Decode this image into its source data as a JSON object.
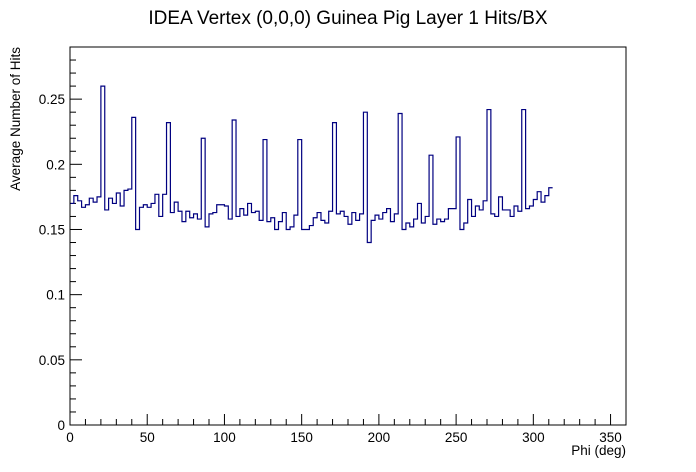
{
  "chart_data": {
    "type": "step",
    "title": "IDEA Vertex (0,0,0) Guinea Pig Layer 1 Hits/BX",
    "xlabel": "Phi (deg)",
    "ylabel": "Average Number of Hits",
    "xlim": [
      0,
      360
    ],
    "ylim": [
      0,
      0.29
    ],
    "xticks": [
      0,
      50,
      100,
      150,
      200,
      250,
      300,
      350
    ],
    "xtick_labels": [
      "0",
      "50",
      "100",
      "150",
      "200",
      "250",
      "300",
      "350"
    ],
    "yticks": [
      0,
      0.05,
      0.1,
      0.15,
      0.2,
      0.25
    ],
    "ytick_labels": [
      "0",
      "0.05",
      "0.1",
      "0.15",
      "0.2",
      "0.25"
    ],
    "bin_width": 2.5,
    "grid": false,
    "line_color": "#000080",
    "values": [
      0.17,
      0.176,
      0.172,
      0.167,
      0.169,
      0.174,
      0.171,
      0.175,
      0.26,
      0.165,
      0.174,
      0.17,
      0.178,
      0.168,
      0.18,
      0.181,
      0.236,
      0.15,
      0.167,
      0.169,
      0.167,
      0.17,
      0.177,
      0.16,
      0.177,
      0.232,
      0.163,
      0.171,
      0.164,
      0.156,
      0.164,
      0.159,
      0.162,
      0.158,
      0.22,
      0.152,
      0.162,
      0.163,
      0.169,
      0.169,
      0.168,
      0.158,
      0.234,
      0.16,
      0.166,
      0.161,
      0.17,
      0.163,
      0.164,
      0.157,
      0.219,
      0.156,
      0.159,
      0.15,
      0.156,
      0.163,
      0.15,
      0.152,
      0.161,
      0.219,
      0.15,
      0.15,
      0.153,
      0.159,
      0.163,
      0.157,
      0.155,
      0.164,
      0.232,
      0.162,
      0.164,
      0.16,
      0.154,
      0.163,
      0.157,
      0.162,
      0.24,
      0.14,
      0.157,
      0.161,
      0.158,
      0.163,
      0.166,
      0.156,
      0.162,
      0.239,
      0.15,
      0.155,
      0.152,
      0.158,
      0.17,
      0.155,
      0.16,
      0.207,
      0.154,
      0.158,
      0.156,
      0.158,
      0.166,
      0.166,
      0.221,
      0.15,
      0.155,
      0.173,
      0.16,
      0.168,
      0.165,
      0.172,
      0.242,
      0.162,
      0.16,
      0.175,
      0.165,
      0.165,
      0.16,
      0.168,
      0.164,
      0.242,
      0.166,
      0.168,
      0.173,
      0.179,
      0.171,
      0.176,
      0.182
    ]
  }
}
